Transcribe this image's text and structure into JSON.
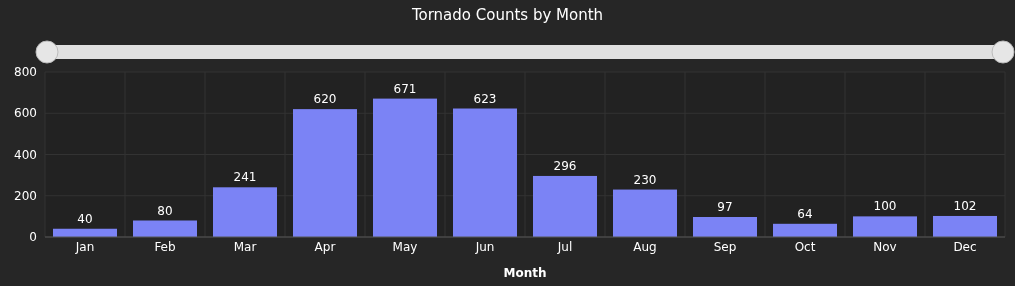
{
  "chart_data": {
    "type": "bar",
    "title": "Tornado Counts by Month",
    "xlabel": "Month",
    "categories": [
      "Jan",
      "Feb",
      "Mar",
      "Apr",
      "May",
      "Jun",
      "Jul",
      "Aug",
      "Sep",
      "Oct",
      "Nov",
      "Dec"
    ],
    "values": [
      40,
      80,
      241,
      620,
      671,
      623,
      296,
      230,
      97,
      64,
      100,
      102
    ],
    "color": "#7b83f5",
    "ylim": [
      0,
      800
    ],
    "yticks": [
      0,
      200,
      400,
      600,
      800
    ],
    "grid": true,
    "data_labels": true
  }
}
